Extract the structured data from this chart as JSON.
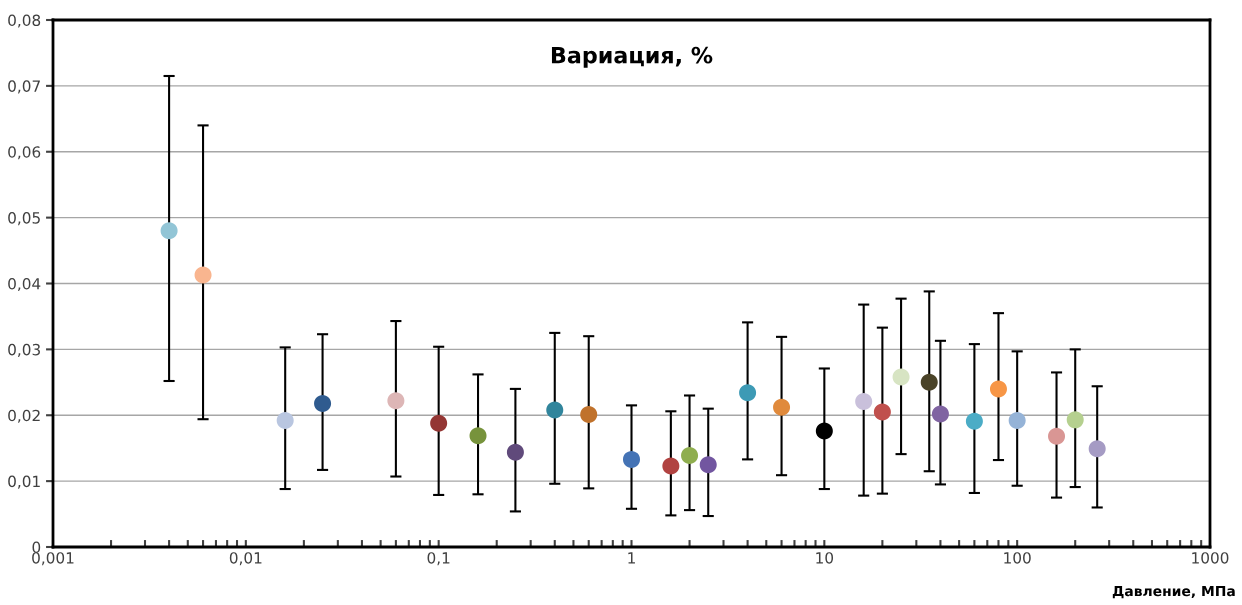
{
  "chart_data": {
    "type": "scatter",
    "title": "Вариация, %",
    "xlabel": "Давление, МПа",
    "log": "x",
    "grid": "y",
    "marker": "circle",
    "xlim": [
      0.001,
      1000
    ],
    "xticks": [
      {
        "value": 0.001,
        "label": "0,001"
      },
      {
        "value": 0.01,
        "label": "0,01"
      },
      {
        "value": 0.1,
        "label": "0,1"
      },
      1,
      10,
      100,
      1000
    ],
    "ylim": [
      0,
      0.08
    ],
    "yticks": [
      0,
      {
        "value": 0.01,
        "label": "0,01"
      },
      {
        "value": 0.02,
        "label": "0,02"
      },
      {
        "value": 0.03,
        "label": "0,03"
      },
      {
        "value": 0.04,
        "label": "0,04"
      },
      {
        "value": 0.05,
        "label": "0,05"
      },
      {
        "value": 0.06,
        "label": "0,06"
      },
      {
        "value": 0.07,
        "label": "0,07"
      },
      {
        "value": 0.08,
        "label": "0,08"
      }
    ],
    "x": [
      0.004,
      0.006,
      0.016,
      0.025,
      0.06,
      0.1,
      0.16,
      0.25,
      0.4,
      0.6,
      1,
      1.6,
      2,
      2.5,
      4,
      6,
      10,
      16,
      20,
      25,
      35,
      40,
      60,
      80,
      100,
      160,
      200,
      260
    ],
    "values": [
      0.048,
      0.0413,
      0.0192,
      0.0218,
      0.0222,
      0.0188,
      0.0169,
      0.0144,
      0.0208,
      0.0201,
      0.0133,
      0.0123,
      0.0139,
      0.0125,
      0.0234,
      0.0212,
      0.0176,
      0.0221,
      0.0205,
      0.0258,
      0.025,
      0.0202,
      0.0191,
      0.024,
      0.0192,
      0.0168,
      0.0193,
      0.0149
    ],
    "errors": [
      [
        0.0252,
        0.0715
      ],
      [
        0.0194,
        0.064
      ],
      [
        0.0088,
        0.0303
      ],
      [
        0.0117,
        0.0323
      ],
      [
        0.0107,
        0.0343
      ],
      [
        0.0079,
        0.0304
      ],
      [
        0.008,
        0.0262
      ],
      [
        0.0054,
        0.024
      ],
      [
        0.0096,
        0.0325
      ],
      [
        0.0089,
        0.032
      ],
      [
        0.0058,
        0.0215
      ],
      [
        0.0048,
        0.0206
      ],
      [
        0.0056,
        0.023
      ],
      [
        0.0047,
        0.021
      ],
      [
        0.0133,
        0.0341
      ],
      [
        0.0109,
        0.0319
      ],
      [
        0.0088,
        0.0271
      ],
      [
        0.0078,
        0.0368
      ],
      [
        0.0081,
        0.0333
      ],
      [
        0.0141,
        0.0377
      ],
      [
        0.0115,
        0.0388
      ],
      [
        0.0095,
        0.0313
      ],
      [
        0.0082,
        0.0308
      ],
      [
        0.0132,
        0.0355
      ],
      [
        0.0093,
        0.0297
      ],
      [
        0.0075,
        0.0265
      ],
      [
        0.0091,
        0.03
      ],
      [
        0.006,
        0.0244
      ]
    ],
    "colors": [
      "#92c5d6",
      "#f9b58f",
      "#b9c6e0",
      "#2f5b8f",
      "#ddb6b6",
      "#943634",
      "#77933c",
      "#604a7b",
      "#31859c",
      "#c0722c",
      "#4473b5",
      "#b14341",
      "#8fae4f",
      "#7256a0",
      "#3d9ab5",
      "#e08a3c",
      "#000000",
      "#c9c0db",
      "#c0504d",
      "#d7e4c3",
      "#4a4328",
      "#8064a2",
      "#4bacc6",
      "#f79646",
      "#95b3d7",
      "#d99694",
      "#b5d08f",
      "#a59bc4"
    ]
  }
}
